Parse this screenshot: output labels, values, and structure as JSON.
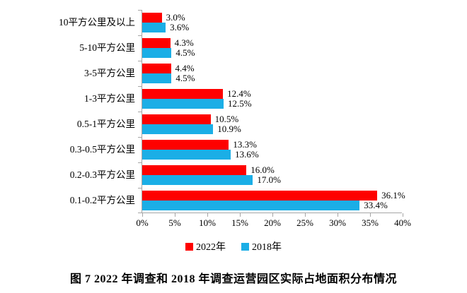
{
  "chart_data": {
    "type": "bar",
    "orientation": "horizontal",
    "title": "",
    "caption": "图 7  2022 年调查和 2018 年调查运营园区实际占地面积分布情况",
    "categories": [
      "10平方公里及以上",
      "5-10平方公里",
      "3-5平方公里",
      "1-3平方公里",
      "0.5-1平方公里",
      "0.3-0.5平方公里",
      "0.2-0.3平方公里",
      "0.1-0.2平方公里"
    ],
    "series": [
      {
        "name": "2022年",
        "color": "#fe0100",
        "values": [
          3.0,
          4.3,
          4.4,
          12.4,
          10.5,
          13.3,
          16.0,
          36.1
        ]
      },
      {
        "name": "2018年",
        "color": "#1baee6",
        "values": [
          3.6,
          4.5,
          4.5,
          12.5,
          10.9,
          13.6,
          17.0,
          33.4
        ]
      }
    ],
    "value_label_format": "one_decimal_percent",
    "x_ticks": [
      "0%",
      "5%",
      "10%",
      "15%",
      "20%",
      "25%",
      "30%",
      "35%",
      "40%"
    ],
    "xlim": [
      0,
      40
    ],
    "xlabel": "",
    "ylabel": "",
    "grid": false,
    "legend_position": "bottom",
    "axis_color": "#a6a6a6",
    "text_color": "#000000"
  }
}
